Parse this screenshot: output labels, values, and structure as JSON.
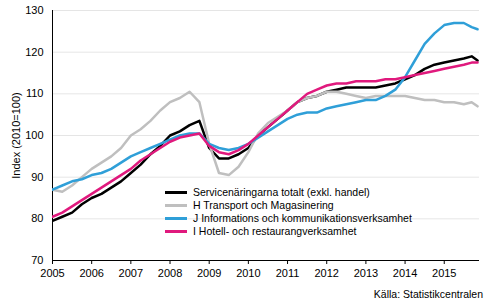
{
  "chart_data": {
    "type": "line",
    "y_label": "Index (2010=100)",
    "caption": "Källa: Statistikcentralen",
    "x": [
      2005,
      2005.25,
      2005.5,
      2005.75,
      2006,
      2006.25,
      2006.5,
      2006.75,
      2007,
      2007.25,
      2007.5,
      2007.75,
      2008,
      2008.25,
      2008.5,
      2008.75,
      2009,
      2009.25,
      2009.5,
      2009.75,
      2010,
      2010.25,
      2010.5,
      2010.75,
      2011,
      2011.25,
      2011.5,
      2011.75,
      2012,
      2012.25,
      2012.5,
      2012.75,
      2013,
      2013.25,
      2013.5,
      2013.75,
      2014,
      2014.25,
      2014.5,
      2014.75,
      2015,
      2015.25,
      2015.5,
      2015.7,
      2015.85
    ],
    "xlim": [
      2005,
      2015.9
    ],
    "xticks": [
      2005,
      2006,
      2007,
      2008,
      2009,
      2010,
      2011,
      2012,
      2013,
      2014,
      2015
    ],
    "ylim": [
      70,
      130
    ],
    "yticks": [
      70,
      80,
      90,
      100,
      110,
      120,
      130
    ],
    "grid": true,
    "legend": "bottom",
    "series": [
      {
        "name": "Servicenäringarna totalt  (exkl. handel)",
        "color": "#000000",
        "values": [
          79.5,
          80.5,
          81.5,
          83.5,
          85,
          86,
          87.5,
          89,
          91,
          93,
          95.5,
          97.5,
          100,
          101,
          102.5,
          103.5,
          97,
          94.5,
          94.5,
          95.5,
          97,
          100,
          102,
          104,
          106,
          108,
          109,
          109.5,
          110.5,
          111,
          111.5,
          111.5,
          111.5,
          111.5,
          112,
          112.5,
          113.5,
          114.5,
          116,
          117,
          117.5,
          118,
          118.5,
          119,
          118
        ]
      },
      {
        "name": "H Transport och Magasinering",
        "color": "#bfbfbf",
        "values": [
          87,
          86.5,
          88,
          90,
          92,
          93.5,
          95,
          97,
          100,
          101.5,
          103.5,
          106,
          108,
          109,
          110.5,
          108,
          98,
          91,
          90.5,
          92.5,
          96,
          100.5,
          103,
          104.5,
          106,
          108,
          109,
          109.5,
          110.5,
          110.5,
          110,
          109.5,
          109,
          109.5,
          109.5,
          109.5,
          109.5,
          109,
          108.5,
          108.5,
          108,
          108,
          107.5,
          108,
          107
        ]
      },
      {
        "name": "J Informations och kommunikationsverksamhet",
        "color": "#2f9fd8",
        "values": [
          87,
          88,
          89,
          89.5,
          90.5,
          91,
          92,
          93.5,
          95,
          96,
          97,
          98,
          99,
          100,
          100.5,
          100.5,
          98,
          97,
          96.5,
          97,
          98,
          99.5,
          101,
          102.5,
          104,
          105,
          105.5,
          105.5,
          106.5,
          107,
          107.5,
          108,
          108.5,
          108.5,
          109.5,
          111,
          114,
          118,
          122,
          124.5,
          126.5,
          127,
          127,
          126,
          125.5
        ]
      },
      {
        "name": "I Hotell- och restaurangverksamhet",
        "color": "#e0197d",
        "values": [
          80.5,
          81.5,
          83,
          84.5,
          86,
          87.5,
          89,
          90.5,
          92,
          94,
          95.5,
          97,
          98.5,
          99.5,
          100,
          100.5,
          97.5,
          96,
          95.5,
          96.5,
          98,
          100,
          102,
          104,
          106,
          108,
          110,
          111,
          112,
          112.5,
          112.5,
          113,
          113,
          113,
          113.5,
          113.5,
          114,
          114.5,
          115,
          115.5,
          116,
          116.5,
          117,
          117.5,
          117.5
        ]
      }
    ]
  }
}
